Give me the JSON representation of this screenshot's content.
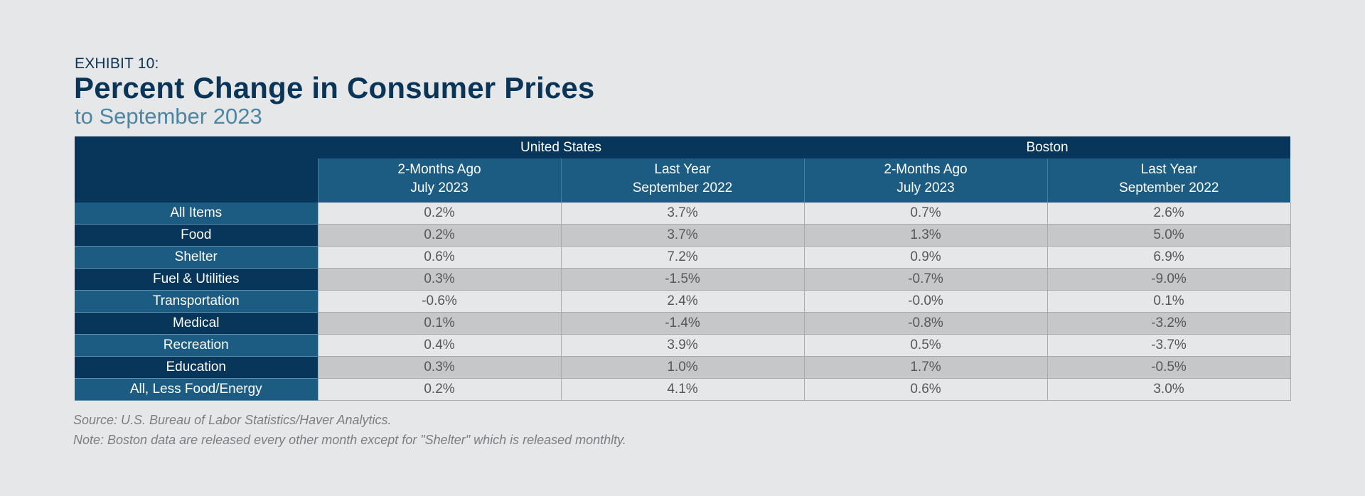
{
  "exhibit_label": "EXHIBIT 10:",
  "title": "Percent Change in Consumer Prices",
  "subtitle": "to September 2023",
  "table": {
    "groups": [
      "United States",
      "Boston"
    ],
    "sub_headers": [
      {
        "line1": "2-Months Ago",
        "line2": "July 2023"
      },
      {
        "line1": "Last Year",
        "line2": "September 2022"
      },
      {
        "line1": "2-Months Ago",
        "line2": "July 2023"
      },
      {
        "line1": "Last Year",
        "line2": "September 2022"
      }
    ],
    "rows": [
      {
        "label": "All Items",
        "values": [
          "0.2%",
          "3.7%",
          "0.7%",
          "2.6%"
        ]
      },
      {
        "label": "Food",
        "values": [
          "0.2%",
          "3.7%",
          "1.3%",
          "5.0%"
        ]
      },
      {
        "label": "Shelter",
        "values": [
          "0.6%",
          "7.2%",
          "0.9%",
          "6.9%"
        ]
      },
      {
        "label": "Fuel & Utilities",
        "values": [
          "0.3%",
          "-1.5%",
          "-0.7%",
          "-9.0%"
        ]
      },
      {
        "label": "Transportation",
        "values": [
          "-0.6%",
          "2.4%",
          "-0.0%",
          "0.1%"
        ]
      },
      {
        "label": "Medical",
        "values": [
          "0.1%",
          "-1.4%",
          "-0.8%",
          "-3.2%"
        ]
      },
      {
        "label": "Recreation",
        "values": [
          "0.4%",
          "3.9%",
          "0.5%",
          "-3.7%"
        ]
      },
      {
        "label": "Education",
        "values": [
          "0.3%",
          "1.0%",
          "1.7%",
          "-0.5%"
        ]
      },
      {
        "label": "All, Less Food/Energy",
        "values": [
          "0.2%",
          "4.1%",
          "0.6%",
          "3.0%"
        ]
      }
    ]
  },
  "source": "Source: U.S. Bureau of Labor Statistics/Haver Analytics.",
  "note": "Note: Boston data are released every other month except for \"Shelter\" which is released monthlty.",
  "colors": {
    "background": "#e6e7e9",
    "navy": "#07365a",
    "steel_blue": "#1c5c82",
    "subtitle_blue": "#4c86a3",
    "light_row": "#e6e7e9",
    "dark_row": "#c6c7c9"
  }
}
